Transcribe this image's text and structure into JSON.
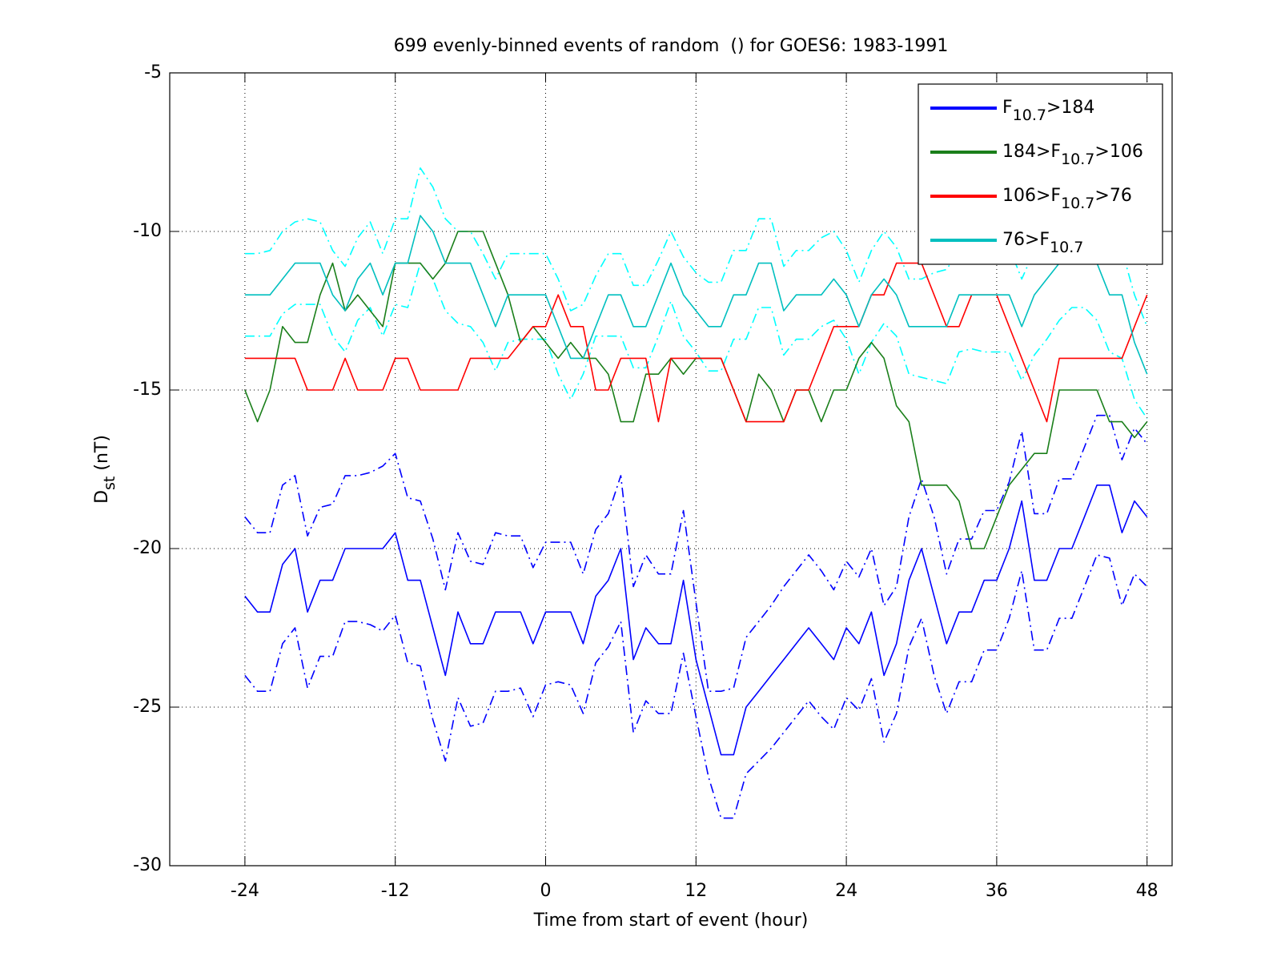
{
  "chart_data": {
    "type": "line",
    "title": "699 evenly-binned events of random  () for GOES6: 1983-1991",
    "xlabel": "Time from start of event (hour)",
    "ylabel": "Dst (nT)",
    "xlim": [
      -30,
      50
    ],
    "xticks": [
      -24,
      -12,
      0,
      12,
      24,
      36,
      48
    ],
    "ylim": [
      -30,
      -5
    ],
    "yticks": [
      -30,
      -25,
      -20,
      -15,
      -10,
      -5
    ],
    "grid": true,
    "legend": "upper right",
    "x": [
      -24,
      -23,
      -22,
      -21,
      -20,
      -19,
      -18,
      -17,
      -16,
      -15,
      -14,
      -13,
      -12,
      -11,
      -10,
      -9,
      -8,
      -7,
      -6,
      -5,
      -4,
      -3,
      -2,
      -1,
      0,
      1,
      2,
      3,
      4,
      5,
      6,
      7,
      8,
      9,
      10,
      11,
      12,
      13,
      14,
      15,
      16,
      17,
      18,
      19,
      20,
      21,
      22,
      23,
      24,
      25,
      26,
      27,
      28,
      29,
      30,
      31,
      32,
      33,
      34,
      35,
      36,
      37,
      38,
      39,
      40,
      41,
      42,
      43,
      44,
      45,
      46,
      47,
      48
    ],
    "series": [
      {
        "color": "#0000ff",
        "style": "dashdot",
        "values": [
          -19,
          -19.5,
          -19.5,
          -18,
          -17.7,
          -19.6,
          -18.7,
          -18.6,
          -17.7,
          -17.7,
          -17.6,
          -17.4,
          -17,
          -18.4,
          -18.5,
          -19.7,
          -21.3,
          -19.5,
          -20.4,
          -20.5,
          -19.5,
          -19.6,
          -19.6,
          -20.6,
          -19.8,
          -19.8,
          -19.8,
          -20.8,
          -19.4,
          -18.9,
          -17.7,
          -21.2,
          -20.2,
          -20.8,
          -20.8,
          -18.8,
          -21.7,
          -24.5,
          -24.5,
          -24.4,
          -22.8,
          -22.3,
          -21.8,
          -21.2,
          -20.7,
          -20.2,
          -20.7,
          -21.3,
          -20.4,
          -20.9,
          -20,
          -21.8,
          -21.2,
          -19,
          -17.8,
          -19,
          -20.8,
          -19.7,
          -19.7,
          -18.8,
          -18.8,
          -17.9,
          -16.3,
          -18.9,
          -18.9,
          -17.8,
          -17.8,
          -16.8,
          -15.8,
          -15.8,
          -17.2,
          -16.2,
          -16.7
        ]
      },
      {
        "color": "#0000ff",
        "style": "dashdot",
        "values": [
          -24,
          -24.5,
          -24.5,
          -23,
          -22.5,
          -24.4,
          -23.4,
          -23.4,
          -22.3,
          -22.3,
          -22.4,
          -22.6,
          -22.1,
          -23.6,
          -23.7,
          -25.4,
          -26.7,
          -24.7,
          -25.6,
          -25.5,
          -24.5,
          -24.5,
          -24.4,
          -25.3,
          -24.3,
          -24.2,
          -24.3,
          -25.2,
          -23.6,
          -23.1,
          -22.3,
          -25.8,
          -24.8,
          -25.2,
          -25.2,
          -23.3,
          -25.3,
          -27.2,
          -28.5,
          -28.5,
          -27.1,
          -26.7,
          -26.3,
          -25.8,
          -25.3,
          -24.8,
          -25.3,
          -25.7,
          -24.7,
          -25.1,
          -24.1,
          -26.1,
          -25.2,
          -23.1,
          -22.2,
          -24,
          -25.2,
          -24.2,
          -24.2,
          -23.2,
          -23.2,
          -22.2,
          -20.7,
          -23.2,
          -23.2,
          -22.2,
          -22.2,
          -21.2,
          -20.2,
          -20.3,
          -21.8,
          -20.8,
          -21.2
        ]
      },
      {
        "color": "#00ffff",
        "style": "dashdot",
        "values": [
          -10.7,
          -10.7,
          -10.6,
          -10,
          -9.7,
          -9.6,
          -9.7,
          -10.6,
          -11.1,
          -10.2,
          -9.7,
          -10.7,
          -9.6,
          -9.6,
          -8,
          -8.6,
          -9.6,
          -10,
          -10,
          -10.7,
          -11.5,
          -10.7,
          -10.7,
          -10.7,
          -10.7,
          -11.5,
          -12.5,
          -12.3,
          -11.4,
          -10.7,
          -10.7,
          -11.7,
          -11.7,
          -10.9,
          -10,
          -10.8,
          -11.3,
          -11.6,
          -11.6,
          -10.6,
          -10.6,
          -9.6,
          -9.6,
          -11.1,
          -10.6,
          -10.6,
          -10.2,
          -10,
          -10.6,
          -11.6,
          -10.6,
          -10,
          -10.5,
          -11.5,
          -11.5,
          -11.3,
          -11.2,
          -10.6,
          -10.6,
          -10.6,
          -10.6,
          -10.5,
          -11.5,
          -10.6,
          -10.1,
          -9.6,
          -9.2,
          -9.2,
          -9.6,
          -10.6,
          -10.6,
          -12,
          -13
        ]
      },
      {
        "color": "#00ffff",
        "style": "dashdot",
        "values": [
          -13.3,
          -13.3,
          -13.3,
          -12.6,
          -12.3,
          -12.3,
          -12.3,
          -13.3,
          -13.8,
          -12.8,
          -12.4,
          -13.3,
          -12.3,
          -12.4,
          -11,
          -11.5,
          -12.5,
          -12.9,
          -13,
          -13.5,
          -14.4,
          -13.5,
          -13.4,
          -13.4,
          -13.4,
          -14.5,
          -15.3,
          -14.5,
          -13.3,
          -13.3,
          -13.3,
          -14.3,
          -14.3,
          -13.3,
          -12.2,
          -13.3,
          -13.8,
          -14.4,
          -14.4,
          -13.4,
          -13.4,
          -12.4,
          -12.4,
          -13.9,
          -13.4,
          -13.4,
          -13,
          -12.8,
          -13.4,
          -14.5,
          -13.5,
          -12.9,
          -13.3,
          -14.5,
          -14.6,
          -14.7,
          -14.8,
          -13.8,
          -13.7,
          -13.8,
          -13.8,
          -13.8,
          -14.7,
          -13.9,
          -13.4,
          -12.8,
          -12.4,
          -12.4,
          -12.8,
          -13.8,
          -14,
          -15.3,
          -15.9
        ]
      },
      {
        "name": "F10.7>184",
        "color": "#0000ff",
        "style": "solid",
        "values": [
          -21.5,
          -22,
          -22,
          -20.5,
          -20,
          -22,
          -21,
          -21,
          -20,
          -20,
          -20,
          -20,
          -19.5,
          -21,
          -21,
          -22.5,
          -24,
          -22,
          -23,
          -23,
          -22,
          -22,
          -22,
          -23,
          -22,
          -22,
          -22,
          -23,
          -21.5,
          -21,
          -20,
          -23.5,
          -22.5,
          -23,
          -23,
          -21,
          -23.5,
          -25,
          -26.5,
          -26.5,
          -25,
          -24.5,
          -24,
          -23.5,
          -23,
          -22.5,
          -23,
          -23.5,
          -22.5,
          -23,
          -22,
          -24,
          -23,
          -21,
          -20,
          -21.5,
          -23,
          -22,
          -22,
          -21,
          -21,
          -20,
          -18.5,
          -21,
          -21,
          -20,
          -20,
          -19,
          -18,
          -18,
          -19.5,
          -18.5,
          -19
        ]
      },
      {
        "name": "184>F10.7>106",
        "color": "#1a7f1a",
        "style": "solid",
        "values": [
          -15,
          -16,
          -15,
          -13,
          -13.5,
          -13.5,
          -12,
          -11,
          -12.5,
          -12,
          -12.5,
          -13,
          -11,
          -11,
          -11,
          -11.5,
          -11,
          -10,
          -10,
          -10,
          -11,
          -12,
          -13.5,
          -13,
          -13.5,
          -14,
          -13.5,
          -14,
          -14,
          -14.5,
          -16,
          -16,
          -14.5,
          -14.5,
          -14,
          -14.5,
          -14,
          -14,
          -14,
          -15,
          -16,
          -14.5,
          -15,
          -16,
          -15,
          -15,
          -16,
          -15,
          -15,
          -14,
          -13.5,
          -14,
          -15.5,
          -16,
          -18,
          -18,
          -18,
          -18.5,
          -20,
          -20,
          -19,
          -18,
          -17.5,
          -17,
          -17,
          -15,
          -15,
          -15,
          -15,
          -16,
          -16,
          -16.5,
          -16
        ]
      },
      {
        "name": "106>F10.7>76",
        "color": "#ff0000",
        "style": "solid",
        "values": [
          -14,
          -14,
          -14,
          -14,
          -14,
          -15,
          -15,
          -15,
          -14,
          -15,
          -15,
          -15,
          -14,
          -14,
          -15,
          -15,
          -15,
          -15,
          -14,
          -14,
          -14,
          -14,
          -13.5,
          -13,
          -13,
          -12,
          -13,
          -13,
          -15,
          -15,
          -14,
          -14,
          -14,
          -16,
          -14,
          -14,
          -14,
          -14,
          -14,
          -15,
          -16,
          -16,
          -16,
          -16,
          -15,
          -15,
          -14,
          -13,
          -13,
          -13,
          -12,
          -12,
          -11,
          -11,
          -11,
          -12,
          -13,
          -13,
          -12,
          -12,
          -12,
          -13,
          -14,
          -15,
          -16,
          -14,
          -14,
          -14,
          -14,
          -14,
          -14,
          -13,
          -12
        ]
      },
      {
        "name": "76>F10.7",
        "color": "#00bfbf",
        "style": "solid",
        "values": [
          -12,
          -12,
          -12,
          -11.5,
          -11,
          -11,
          -11,
          -12,
          -12.5,
          -11.5,
          -11,
          -12,
          -11,
          -11,
          -9.5,
          -10,
          -11,
          -11,
          -11,
          -12,
          -13,
          -12,
          -12,
          -12,
          -12,
          -13,
          -14,
          -14,
          -13,
          -12,
          -12,
          -13,
          -13,
          -12,
          -11,
          -12,
          -12.5,
          -13,
          -13,
          -12,
          -12,
          -11,
          -11,
          -12.5,
          -12,
          -12,
          -12,
          -11.5,
          -12,
          -13,
          -12,
          -11.5,
          -12,
          -13,
          -13,
          -13,
          -13,
          -12,
          -12,
          -12,
          -12,
          -12,
          -13,
          -12,
          -11.5,
          -11,
          -10.5,
          -10.5,
          -11,
          -12,
          -12,
          -13.5,
          -14.5
        ]
      }
    ]
  }
}
